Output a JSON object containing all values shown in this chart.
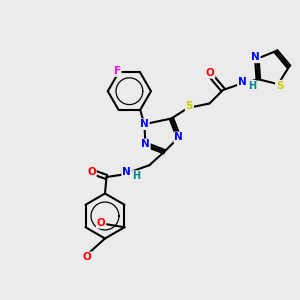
{
  "bg_color": "#ebebeb",
  "atom_colors": {
    "C": "#000000",
    "N": "#0000ff",
    "O": "#ff0000",
    "S": "#cccc00",
    "F": "#ff00ff",
    "H": "#008888"
  },
  "bond_color": "#000000",
  "bond_width": 1.5
}
